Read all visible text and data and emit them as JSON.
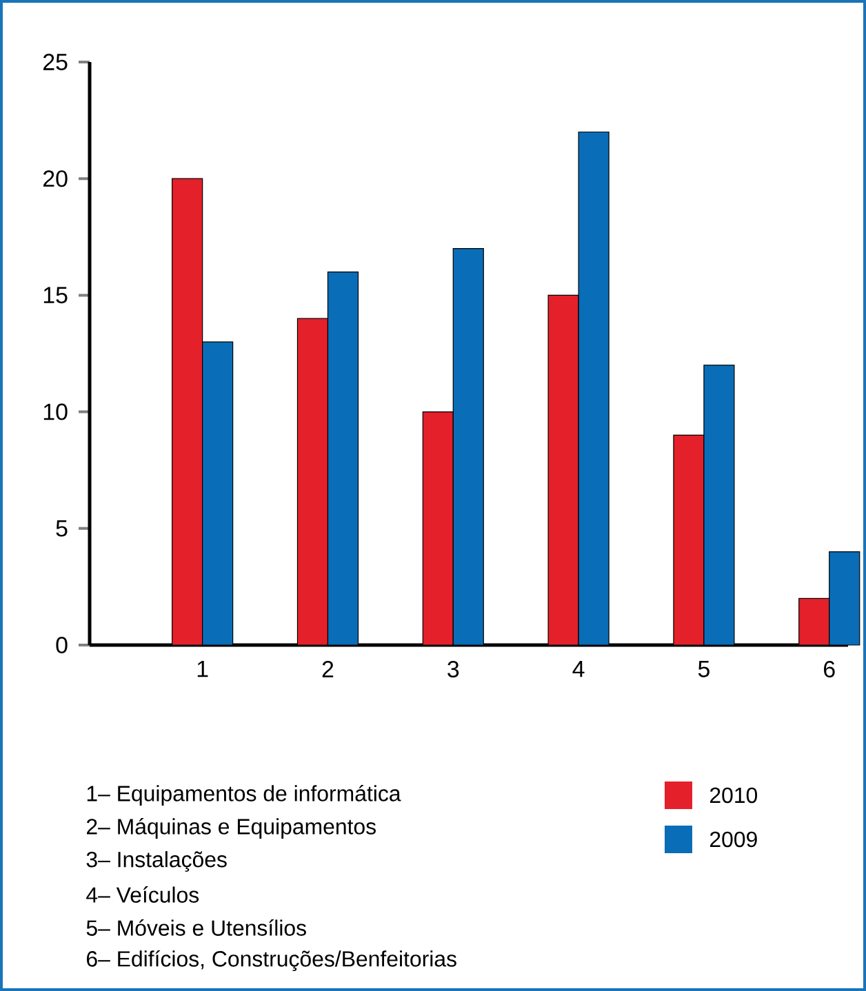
{
  "chart_data": {
    "type": "bar",
    "categories": [
      "1",
      "2",
      "3",
      "4",
      "5",
      "6"
    ],
    "series": [
      {
        "name": "2010",
        "color": "#e4202a",
        "values": [
          20,
          14,
          10,
          15,
          9,
          2
        ]
      },
      {
        "name": "2009",
        "color": "#0a6db7",
        "values": [
          13,
          16,
          17,
          22,
          12,
          4
        ]
      }
    ],
    "ylim": [
      0,
      25
    ],
    "yticks": [
      0,
      5,
      10,
      15,
      20,
      25
    ],
    "legend": "bottom right",
    "grid": false,
    "annotations": [
      "1– Equipamentos de informática",
      "2– Máquinas e Equipamentos",
      "3– Instalações",
      "4– Veículos",
      "5– Móveis e Utensílios",
      "6– Edifícios, Construções/Benfeitorias"
    ]
  }
}
